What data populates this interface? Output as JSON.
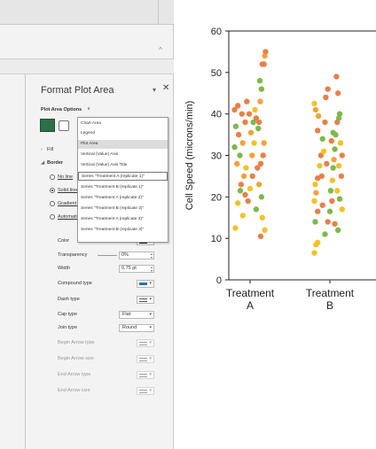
{
  "format_pane": {
    "title": "Format Plot Area",
    "options_label": "Plot Area Options",
    "sections": {
      "fill": "Fill",
      "border": "Border"
    },
    "border_options": [
      {
        "label": "No line",
        "selected": false
      },
      {
        "label": "Solid line",
        "selected": true
      },
      {
        "label": "Gradient line",
        "selected": false
      },
      {
        "label": "Automatic",
        "selected": false
      }
    ],
    "properties": {
      "color": "Color",
      "transparency": "Transparency",
      "transparency_value": "0%",
      "width": "Width",
      "width_value": "0.75 pt",
      "compound_type": "Compound type",
      "dash_type": "Dash type",
      "cap_type": "Cap type",
      "cap_type_value": "Flat",
      "join_type": "Join type",
      "join_type_value": "Round",
      "begin_arrow_type": "Begin Arrow type",
      "begin_arrow_size": "Begin Arrow size",
      "end_arrow_type": "End Arrow type",
      "end_arrow_size": "End Arrow size"
    },
    "element_list": [
      "Chart Area",
      "Legend",
      "Plot Area",
      "Vertical (Value) Axis",
      "Vertical (Value) Axis Title",
      "Series \"Treatment A (replicate 1)\"",
      "Series \"Treatment B (replicate 1)\"",
      "Series \"Treatment A (replicate 2)\"",
      "Series \"Treatment B (replicate 2)\"",
      "Series \"Treatment A (replicate 3)\"",
      "Series \"Treatment B (replicate 3)\""
    ],
    "selected_item": "Plot Area",
    "hovered_item": "Series \"Treatment A (replicate 1)\"",
    "accent_color": "#2f6e48"
  },
  "chart_data": {
    "type": "scatter",
    "ylabel": "Cell Speed (microns/min)",
    "ylim": [
      0,
      60
    ],
    "yticks": [
      0,
      10,
      20,
      30,
      40,
      50,
      60
    ],
    "categories": [
      {
        "line1": "Treatment",
        "line2": "A"
      },
      {
        "line1": "Treatment",
        "line2": "B"
      }
    ],
    "series_colors": [
      "#f4a23a",
      "#e8804a",
      "#f2c22c",
      "#7db94a"
    ],
    "points": [
      {
        "c": 0,
        "x": -0.36,
        "y": 12.5,
        "s": 2
      },
      {
        "c": 0,
        "x": -0.18,
        "y": 15.5,
        "s": 2
      },
      {
        "c": 0,
        "x": -0.12,
        "y": 20.5,
        "s": 1
      },
      {
        "c": 0,
        "x": -0.3,
        "y": 18.5,
        "s": 2
      },
      {
        "c": 0,
        "x": -0.22,
        "y": 23,
        "s": 1
      },
      {
        "c": 0,
        "x": -0.15,
        "y": 25,
        "s": 0
      },
      {
        "c": 0,
        "x": -0.32,
        "y": 28,
        "s": 0
      },
      {
        "c": 0,
        "x": -0.25,
        "y": 30,
        "s": 3
      },
      {
        "c": 0,
        "x": -0.38,
        "y": 32,
        "s": 3
      },
      {
        "c": 0,
        "x": -0.18,
        "y": 33,
        "s": 0
      },
      {
        "c": 0,
        "x": -0.28,
        "y": 35,
        "s": 1
      },
      {
        "c": 0,
        "x": -0.35,
        "y": 37,
        "s": 3
      },
      {
        "c": 0,
        "x": -0.12,
        "y": 38,
        "s": 1
      },
      {
        "c": 0,
        "x": -0.2,
        "y": 40,
        "s": 1
      },
      {
        "c": 0,
        "x": -0.3,
        "y": 42,
        "s": 1
      },
      {
        "c": 0,
        "x": -0.38,
        "y": 41,
        "s": 1
      },
      {
        "c": 0,
        "x": -0.1,
        "y": 27,
        "s": 2
      },
      {
        "c": 0,
        "x": -0.24,
        "y": 21.5,
        "s": 3
      },
      {
        "c": 0,
        "x": -0.05,
        "y": 19,
        "s": 1
      },
      {
        "c": 0,
        "x": 0.0,
        "y": 22,
        "s": 2
      },
      {
        "c": 0,
        "x": 0.05,
        "y": 30,
        "s": 0
      },
      {
        "c": 0,
        "x": 0.1,
        "y": 33,
        "s": 2
      },
      {
        "c": 0,
        "x": 0.02,
        "y": 35.5,
        "s": 0
      },
      {
        "c": 0,
        "x": 0.08,
        "y": 38,
        "s": 3
      },
      {
        "c": 0,
        "x": -0.02,
        "y": 40,
        "s": 1
      },
      {
        "c": 0,
        "x": 0.12,
        "y": 41,
        "s": 2
      },
      {
        "c": 0,
        "x": 0.06,
        "y": 25,
        "s": 1
      },
      {
        "c": 0,
        "x": 0.15,
        "y": 17,
        "s": 3
      },
      {
        "c": 0,
        "x": 0.18,
        "y": 27,
        "s": 1
      },
      {
        "c": 0,
        "x": 0.2,
        "y": 36.5,
        "s": 3
      },
      {
        "c": 0,
        "x": 0.22,
        "y": 38,
        "s": 1
      },
      {
        "c": 0,
        "x": 0.25,
        "y": 43,
        "s": 0
      },
      {
        "c": 0,
        "x": 0.28,
        "y": 46,
        "s": 3
      },
      {
        "c": 0,
        "x": 0.24,
        "y": 48,
        "s": 3
      },
      {
        "c": 0,
        "x": 0.3,
        "y": 52,
        "s": 1
      },
      {
        "c": 0,
        "x": 0.34,
        "y": 52,
        "s": 1
      },
      {
        "c": 0,
        "x": 0.36,
        "y": 54,
        "s": 0
      },
      {
        "c": 0,
        "x": 0.38,
        "y": 55,
        "s": 1
      },
      {
        "c": 0,
        "x": 0.32,
        "y": 30,
        "s": 1
      },
      {
        "c": 0,
        "x": 0.26,
        "y": 28,
        "s": 1
      },
      {
        "c": 0,
        "x": 0.34,
        "y": 33,
        "s": 0
      },
      {
        "c": 0,
        "x": 0.28,
        "y": 20,
        "s": 3
      },
      {
        "c": 0,
        "x": 0.3,
        "y": 15,
        "s": 2
      },
      {
        "c": 0,
        "x": 0.36,
        "y": 12,
        "s": 2
      },
      {
        "c": 0,
        "x": 0.26,
        "y": 10.5,
        "s": 1
      },
      {
        "c": 0,
        "x": 0.22,
        "y": 23,
        "s": 0
      },
      {
        "c": 0,
        "x": -0.08,
        "y": 43,
        "s": 1
      },
      {
        "c": 0,
        "x": 0.15,
        "y": 39,
        "s": 1
      },
      {
        "c": 1,
        "x": -0.38,
        "y": 6.5,
        "s": 2
      },
      {
        "c": 1,
        "x": -0.34,
        "y": 8.5,
        "s": 2
      },
      {
        "c": 1,
        "x": -0.3,
        "y": 9,
        "s": 2
      },
      {
        "c": 1,
        "x": -0.36,
        "y": 14,
        "s": 3
      },
      {
        "c": 1,
        "x": -0.3,
        "y": 16.5,
        "s": 1
      },
      {
        "c": 1,
        "x": -0.38,
        "y": 19,
        "s": 2
      },
      {
        "c": 1,
        "x": -0.34,
        "y": 21,
        "s": 0
      },
      {
        "c": 1,
        "x": -0.36,
        "y": 23,
        "s": 2
      },
      {
        "c": 1,
        "x": -0.3,
        "y": 24.5,
        "s": 1
      },
      {
        "c": 1,
        "x": -0.2,
        "y": 25,
        "s": 1
      },
      {
        "c": 1,
        "x": -0.25,
        "y": 27.5,
        "s": 2
      },
      {
        "c": 1,
        "x": -0.22,
        "y": 30,
        "s": 1
      },
      {
        "c": 1,
        "x": -0.18,
        "y": 34,
        "s": 3
      },
      {
        "c": 1,
        "x": -0.3,
        "y": 36,
        "s": 1
      },
      {
        "c": 1,
        "x": -0.28,
        "y": 39.5,
        "s": 0
      },
      {
        "c": 1,
        "x": -0.35,
        "y": 41,
        "s": 0
      },
      {
        "c": 1,
        "x": -0.38,
        "y": 42.5,
        "s": 2
      },
      {
        "c": 1,
        "x": -0.1,
        "y": 44,
        "s": 1
      },
      {
        "c": 1,
        "x": -0.05,
        "y": 46,
        "s": 1
      },
      {
        "c": 1,
        "x": -0.12,
        "y": 38,
        "s": 1
      },
      {
        "c": 1,
        "x": -0.15,
        "y": 31,
        "s": 2
      },
      {
        "c": 1,
        "x": -0.08,
        "y": 28,
        "s": 1
      },
      {
        "c": 1,
        "x": -0.18,
        "y": 18,
        "s": 1
      },
      {
        "c": 1,
        "x": -0.12,
        "y": 11,
        "s": 3
      },
      {
        "c": 1,
        "x": -0.05,
        "y": 14,
        "s": 1
      },
      {
        "c": 1,
        "x": 0.0,
        "y": 16.5,
        "s": 3
      },
      {
        "c": 1,
        "x": 0.05,
        "y": 19,
        "s": 1
      },
      {
        "c": 1,
        "x": 0.02,
        "y": 21.5,
        "s": 3
      },
      {
        "c": 1,
        "x": 0.06,
        "y": 24,
        "s": 2
      },
      {
        "c": 1,
        "x": 0.08,
        "y": 27,
        "s": 3
      },
      {
        "c": 1,
        "x": 0.1,
        "y": 29,
        "s": 0
      },
      {
        "c": 1,
        "x": 0.12,
        "y": 31.5,
        "s": 3
      },
      {
        "c": 1,
        "x": 0.04,
        "y": 33.5,
        "s": 1
      },
      {
        "c": 1,
        "x": 0.08,
        "y": 35.5,
        "s": 3
      },
      {
        "c": 1,
        "x": 0.14,
        "y": 35,
        "s": 3
      },
      {
        "c": 1,
        "x": 0.18,
        "y": 38,
        "s": 1
      },
      {
        "c": 1,
        "x": 0.22,
        "y": 39,
        "s": 3
      },
      {
        "c": 1,
        "x": 0.24,
        "y": 40,
        "s": 3
      },
      {
        "c": 1,
        "x": 0.2,
        "y": 45,
        "s": 1
      },
      {
        "c": 1,
        "x": 0.16,
        "y": 49,
        "s": 1
      },
      {
        "c": 1,
        "x": 0.26,
        "y": 33,
        "s": 2
      },
      {
        "c": 1,
        "x": 0.3,
        "y": 30,
        "s": 1
      },
      {
        "c": 1,
        "x": 0.22,
        "y": 27.5,
        "s": 2
      },
      {
        "c": 1,
        "x": 0.28,
        "y": 25,
        "s": 1
      },
      {
        "c": 1,
        "x": 0.18,
        "y": 21.5,
        "s": 2
      },
      {
        "c": 1,
        "x": 0.24,
        "y": 19.5,
        "s": 3
      },
      {
        "c": 1,
        "x": 0.3,
        "y": 17,
        "s": 2
      },
      {
        "c": 1,
        "x": 0.12,
        "y": 13.5,
        "s": 1
      },
      {
        "c": 1,
        "x": 0.2,
        "y": 12,
        "s": 3
      }
    ]
  }
}
